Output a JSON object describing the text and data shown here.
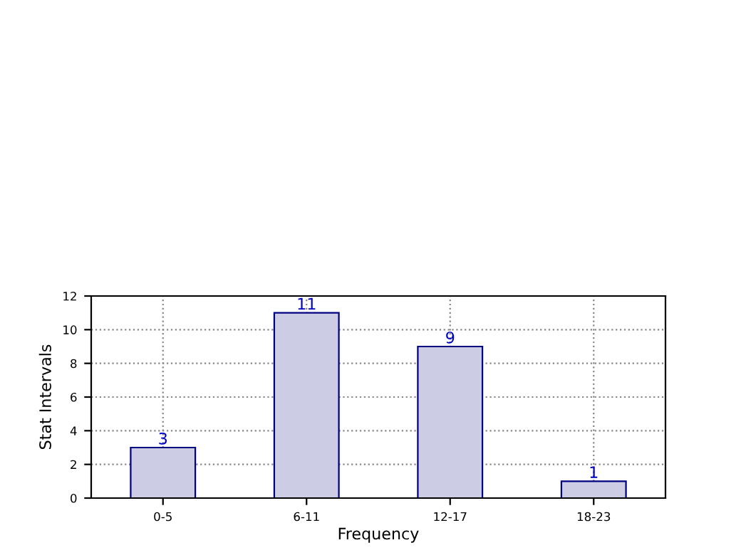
{
  "chart_data": {
    "type": "bar",
    "xlabel": "Frequency",
    "ylabel": "Stat Intervals",
    "categories": [
      "0-5",
      "6-11",
      "12-17",
      "18-23"
    ],
    "values": [
      3,
      11,
      9,
      1
    ],
    "color": "#cccce5",
    "ylim": [
      0,
      12
    ],
    "yticks": [
      0,
      2,
      4,
      6,
      8,
      10,
      12
    ],
    "grid": true,
    "data_labels": true
  }
}
